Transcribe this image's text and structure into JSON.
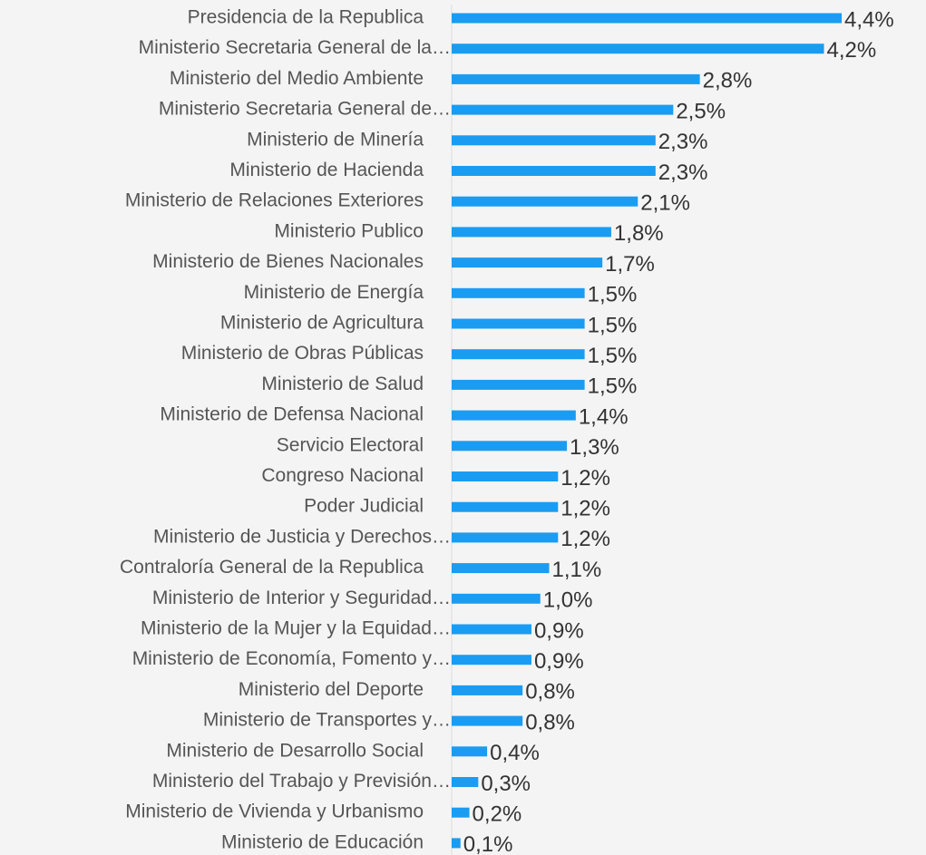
{
  "chart_data": {
    "type": "bar",
    "orientation": "horizontal",
    "color": "#1a9cf2",
    "categories": [
      "Presidencia de la Republica",
      "Ministerio Secretaria General de la…",
      "Ministerio del Medio Ambiente",
      "Ministerio Secretaria General de…",
      "Ministerio de Minería",
      "Ministerio de Hacienda",
      "Ministerio de Relaciones Exteriores",
      "Ministerio Publico",
      "Ministerio de Bienes Nacionales",
      "Ministerio de Energía",
      "Ministerio de Agricultura",
      "Ministerio de Obras Públicas",
      "Ministerio de Salud",
      "Ministerio de Defensa Nacional",
      "Servicio Electoral",
      "Congreso Nacional",
      "Poder Judicial",
      "Ministerio de Justicia y Derechos…",
      "Contraloría General de la Republica",
      "Ministerio de Interior y Seguridad…",
      "Ministerio de la Mujer y la Equidad…",
      "Ministerio de Economía, Fomento y…",
      "Ministerio del Deporte",
      "Ministerio de Transportes y…",
      "Ministerio de Desarrollo Social",
      "Ministerio del Trabajo y Previsión…",
      "Ministerio de Vivienda y Urbanismo",
      "Ministerio de Educación"
    ],
    "values": [
      4.4,
      4.2,
      2.8,
      2.5,
      2.3,
      2.3,
      2.1,
      1.8,
      1.7,
      1.5,
      1.5,
      1.5,
      1.5,
      1.4,
      1.3,
      1.2,
      1.2,
      1.2,
      1.1,
      1.0,
      0.9,
      0.9,
      0.8,
      0.8,
      0.4,
      0.3,
      0.2,
      0.1
    ],
    "value_labels": [
      "4,4%",
      "4,2%",
      "2,8%",
      "2,5%",
      "2,3%",
      "2,3%",
      "2,1%",
      "1,8%",
      "1,7%",
      "1,5%",
      "1,5%",
      "1,5%",
      "1,5%",
      "1,4%",
      "1,3%",
      "1,2%",
      "1,2%",
      "1,2%",
      "1,1%",
      "1,0%",
      "0,9%",
      "0,9%",
      "0,8%",
      "0,8%",
      "0,4%",
      "0,3%",
      "0,2%",
      "0,1%"
    ],
    "xlim": [
      0,
      5.3
    ]
  }
}
